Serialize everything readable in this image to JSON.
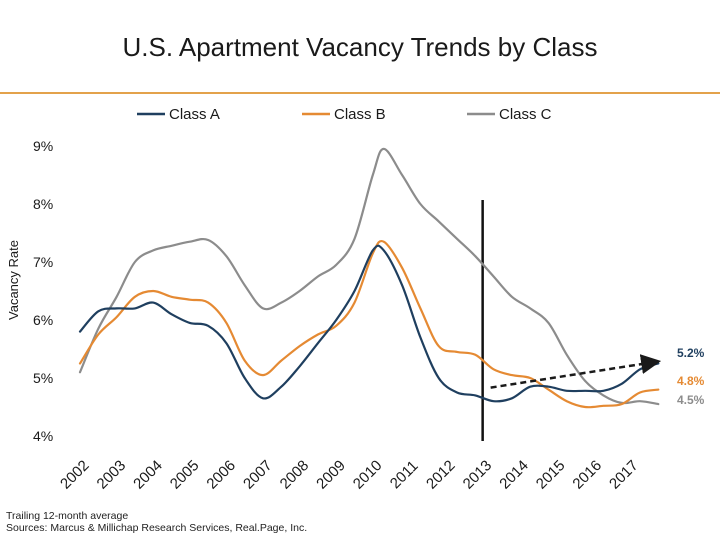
{
  "chart_data": {
    "type": "line",
    "title": "U.S. Apartment Vacancy Trends by Class",
    "ylabel": "Vacancy Rate",
    "xlabel": "",
    "ylim": [
      4,
      9
    ],
    "xlim": [
      2002,
      2017.9
    ],
    "yticks": [
      "4%",
      "5%",
      "6%",
      "7%",
      "8%",
      "9%"
    ],
    "xticks": [
      "2002",
      "2003",
      "2004",
      "2005",
      "2006",
      "2007",
      "2008",
      "2009",
      "2010",
      "2011",
      "2012",
      "2013",
      "2014",
      "2015",
      "2016",
      "2017"
    ],
    "legend_position": "top",
    "series": [
      {
        "name": "Class A",
        "color": "#1f3f5f",
        "end_label": "5.2%",
        "points": [
          [
            2002.0,
            5.8
          ],
          [
            2002.5,
            6.15
          ],
          [
            2003.0,
            6.2
          ],
          [
            2003.5,
            6.2
          ],
          [
            2004.0,
            6.3
          ],
          [
            2004.5,
            6.1
          ],
          [
            2005.0,
            5.95
          ],
          [
            2005.5,
            5.9
          ],
          [
            2006.0,
            5.6
          ],
          [
            2006.5,
            5.0
          ],
          [
            2007.0,
            4.65
          ],
          [
            2007.5,
            4.85
          ],
          [
            2008.0,
            5.2
          ],
          [
            2008.5,
            5.6
          ],
          [
            2009.0,
            6.0
          ],
          [
            2009.5,
            6.5
          ],
          [
            2010.0,
            7.2
          ],
          [
            2010.3,
            7.2
          ],
          [
            2010.8,
            6.6
          ],
          [
            2011.3,
            5.7
          ],
          [
            2011.8,
            5.0
          ],
          [
            2012.3,
            4.75
          ],
          [
            2012.8,
            4.7
          ],
          [
            2013.3,
            4.6
          ],
          [
            2013.8,
            4.65
          ],
          [
            2014.3,
            4.85
          ],
          [
            2014.8,
            4.85
          ],
          [
            2015.3,
            4.78
          ],
          [
            2015.8,
            4.78
          ],
          [
            2016.3,
            4.78
          ],
          [
            2016.8,
            4.9
          ],
          [
            2017.3,
            5.15
          ],
          [
            2017.8,
            5.25
          ]
        ]
      },
      {
        "name": "Class B",
        "color": "#e58a33",
        "end_label": "4.8%",
        "points": [
          [
            2002.0,
            5.25
          ],
          [
            2002.5,
            5.75
          ],
          [
            2003.0,
            6.05
          ],
          [
            2003.5,
            6.4
          ],
          [
            2004.0,
            6.5
          ],
          [
            2004.5,
            6.4
          ],
          [
            2005.0,
            6.35
          ],
          [
            2005.5,
            6.3
          ],
          [
            2006.0,
            5.95
          ],
          [
            2006.5,
            5.3
          ],
          [
            2007.0,
            5.05
          ],
          [
            2007.5,
            5.3
          ],
          [
            2008.0,
            5.55
          ],
          [
            2008.5,
            5.75
          ],
          [
            2009.0,
            5.9
          ],
          [
            2009.5,
            6.3
          ],
          [
            2010.0,
            7.15
          ],
          [
            2010.3,
            7.35
          ],
          [
            2010.8,
            6.9
          ],
          [
            2011.3,
            6.2
          ],
          [
            2011.8,
            5.55
          ],
          [
            2012.3,
            5.45
          ],
          [
            2012.8,
            5.4
          ],
          [
            2013.3,
            5.15
          ],
          [
            2013.8,
            5.05
          ],
          [
            2014.3,
            5.0
          ],
          [
            2014.8,
            4.8
          ],
          [
            2015.3,
            4.6
          ],
          [
            2015.8,
            4.5
          ],
          [
            2016.3,
            4.52
          ],
          [
            2016.8,
            4.55
          ],
          [
            2017.3,
            4.75
          ],
          [
            2017.8,
            4.8
          ]
        ]
      },
      {
        "name": "Class C",
        "color": "#8c8c8c",
        "end_label": "4.5%",
        "points": [
          [
            2002.0,
            5.1
          ],
          [
            2002.5,
            5.85
          ],
          [
            2003.0,
            6.4
          ],
          [
            2003.5,
            7.0
          ],
          [
            2004.0,
            7.2
          ],
          [
            2004.5,
            7.28
          ],
          [
            2005.0,
            7.35
          ],
          [
            2005.5,
            7.38
          ],
          [
            2006.0,
            7.1
          ],
          [
            2006.5,
            6.6
          ],
          [
            2007.0,
            6.2
          ],
          [
            2007.5,
            6.3
          ],
          [
            2008.0,
            6.5
          ],
          [
            2008.5,
            6.75
          ],
          [
            2009.0,
            6.95
          ],
          [
            2009.5,
            7.4
          ],
          [
            2010.0,
            8.5
          ],
          [
            2010.3,
            8.95
          ],
          [
            2010.8,
            8.5
          ],
          [
            2011.3,
            8.0
          ],
          [
            2011.8,
            7.7
          ],
          [
            2012.3,
            7.4
          ],
          [
            2012.8,
            7.1
          ],
          [
            2013.3,
            6.75
          ],
          [
            2013.8,
            6.4
          ],
          [
            2014.3,
            6.2
          ],
          [
            2014.8,
            5.95
          ],
          [
            2015.3,
            5.4
          ],
          [
            2015.8,
            4.95
          ],
          [
            2016.3,
            4.7
          ],
          [
            2016.8,
            4.57
          ],
          [
            2017.3,
            4.6
          ],
          [
            2017.8,
            4.55
          ]
        ]
      }
    ],
    "annotations": {
      "divider_year": 2013,
      "trend_arrow": {
        "from": [
          2013.0,
          4.8
        ],
        "to": [
          2017.85,
          5.28
        ],
        "style": "dashed"
      }
    }
  },
  "footer": {
    "line1": "Trailing 12-month average",
    "line2": "Sources: Marcus & Millichap Research Services, Real.Page, Inc."
  }
}
